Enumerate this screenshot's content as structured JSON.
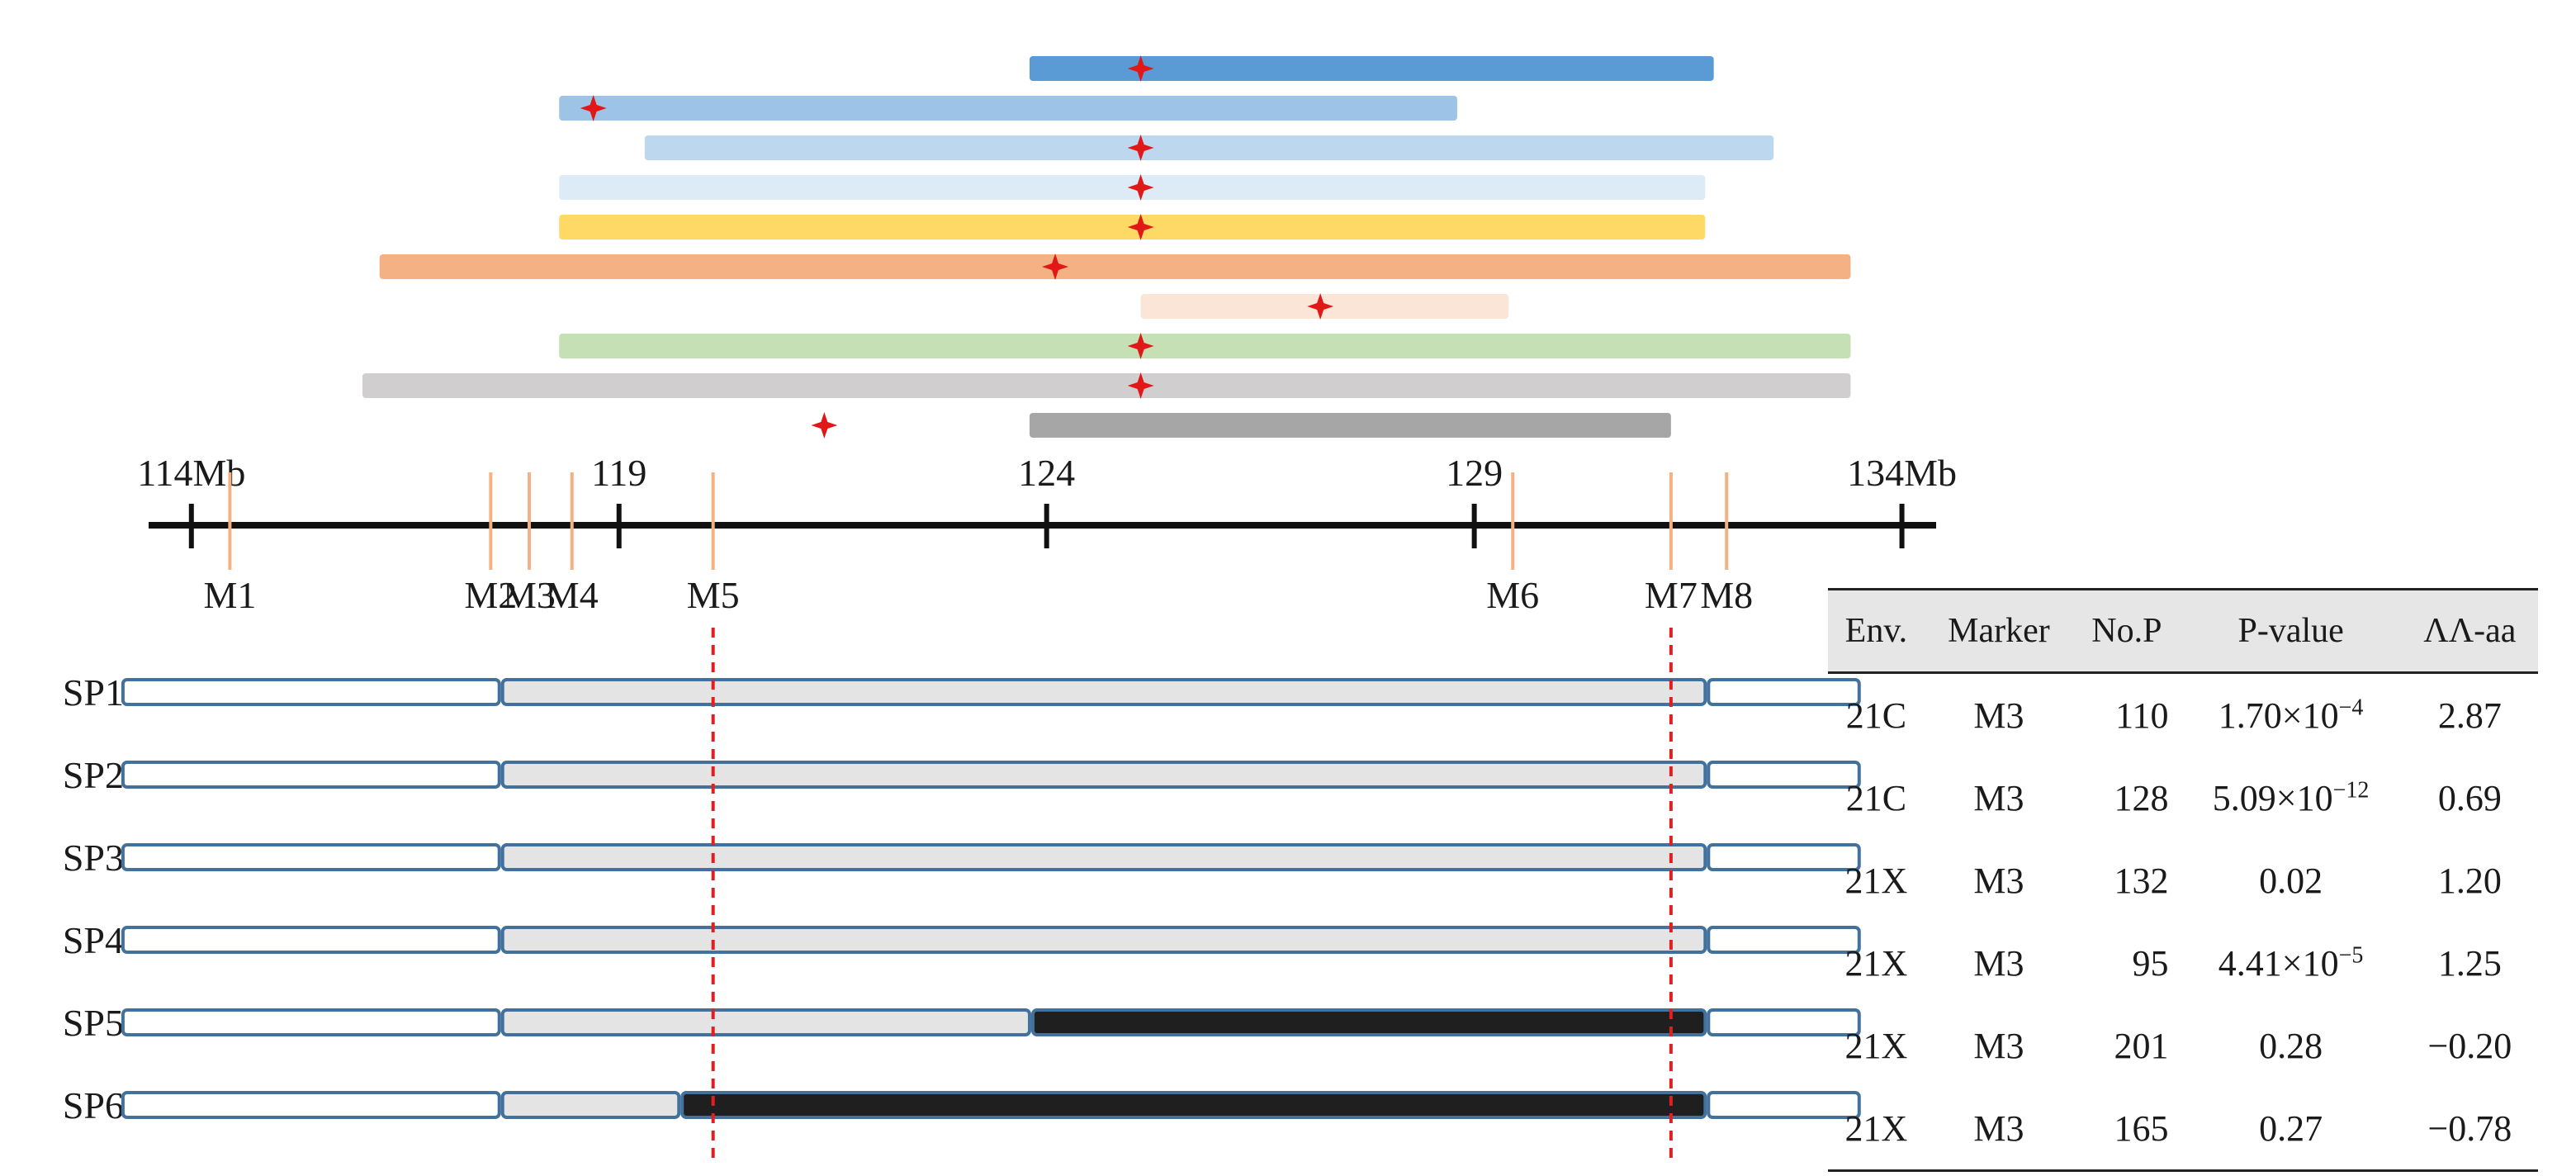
{
  "qtl_intervals": [
    {
      "color": "#5b9bd5",
      "start": 123.8,
      "end": 131.8,
      "peak": 125.1
    },
    {
      "color": "#9dc3e6",
      "start": 118.3,
      "end": 128.8,
      "peak": 118.7
    },
    {
      "color": "#bdd7ee",
      "start": 119.3,
      "end": 132.5,
      "peak": 125.1
    },
    {
      "color": "#ddebf7",
      "start": 118.3,
      "end": 131.7,
      "peak": 125.1
    },
    {
      "color": "#ffd966",
      "start": 118.3,
      "end": 131.7,
      "peak": 125.1
    },
    {
      "color": "#f4b183",
      "start": 116.2,
      "end": 133.4,
      "peak": 124.1
    },
    {
      "color": "#fbe5d6",
      "start": 125.1,
      "end": 129.4,
      "peak": 127.2
    },
    {
      "color": "#c5e0b4",
      "start": 118.3,
      "end": 133.4,
      "peak": 125.1
    },
    {
      "color": "#d0cece",
      "start": 116.0,
      "end": 133.4,
      "peak": 125.1
    },
    {
      "color": "#a6a6a6",
      "start": 123.8,
      "end": 131.3,
      "peak": 121.4
    }
  ],
  "axis": {
    "range": [
      113.5,
      134.4
    ],
    "ticks": [
      {
        "value": 114,
        "label": "114Mb"
      },
      {
        "value": 119,
        "label": "119"
      },
      {
        "value": 124,
        "label": "124"
      },
      {
        "value": 129,
        "label": "129"
      },
      {
        "value": 134,
        "label": "134Mb"
      }
    ]
  },
  "markers": [
    {
      "name": "M1",
      "pos": 114.45
    },
    {
      "name": "M2",
      "pos": 117.5
    },
    {
      "name": "M3",
      "pos": 117.95
    },
    {
      "name": "M4",
      "pos": 118.45
    },
    {
      "name": "M5",
      "pos": 120.1
    },
    {
      "name": "M6",
      "pos": 129.45
    },
    {
      "name": "M7",
      "pos": 131.3
    },
    {
      "name": "M8",
      "pos": 131.95
    }
  ],
  "dashed_markers": [
    "M5",
    "M7"
  ],
  "lines": [
    {
      "name": "SP1",
      "light_end": 131.7,
      "dark_end": null
    },
    {
      "name": "SP2",
      "light_end": 131.7,
      "dark_end": null
    },
    {
      "name": "SP3",
      "light_end": 131.7,
      "dark_end": null
    },
    {
      "name": "SP4",
      "light_end": 131.7,
      "dark_end": null
    },
    {
      "name": "SP5",
      "light_end": 123.8,
      "dark_end": 131.7
    },
    {
      "name": "SP6",
      "light_end": 119.7,
      "dark_end": 131.7
    }
  ],
  "segment_bounds": {
    "left_start": 113.2,
    "left_end": 117.6,
    "right_start": 131.7,
    "right_end": 133.5
  },
  "table": {
    "headers": [
      "Env.",
      "Marker",
      "No.P",
      "P-value",
      "ΛΛ-aa"
    ],
    "rows": [
      {
        "env": "21C",
        "marker": "M3",
        "nop": "110",
        "p_base": "1.70×10",
        "p_exp": "−4",
        "effect": "2.87"
      },
      {
        "env": "21C",
        "marker": "M3",
        "nop": "128",
        "p_base": "5.09×10",
        "p_exp": "−12",
        "effect": "0.69"
      },
      {
        "env": "21X",
        "marker": "M3",
        "nop": "132",
        "p_base": "0.02",
        "p_exp": "",
        "effect": "1.20"
      },
      {
        "env": "21X",
        "marker": "M3",
        "nop": "95",
        "p_base": "4.41×10",
        "p_exp": "−5",
        "effect": "1.25"
      },
      {
        "env": "21X",
        "marker": "M3",
        "nop": "201",
        "p_base": "0.28",
        "p_exp": "",
        "effect": "−0.20"
      },
      {
        "env": "21X",
        "marker": "M3",
        "nop": "165",
        "p_base": "0.27",
        "p_exp": "",
        "effect": "−0.78"
      }
    ]
  },
  "colors": {
    "marker_line": "#f4b183",
    "dashed": "#e02020",
    "peak": "#e01818",
    "dark_segment": "#1f1f1f",
    "light_segment": "#e4e4e4",
    "outline": "#41719c"
  }
}
